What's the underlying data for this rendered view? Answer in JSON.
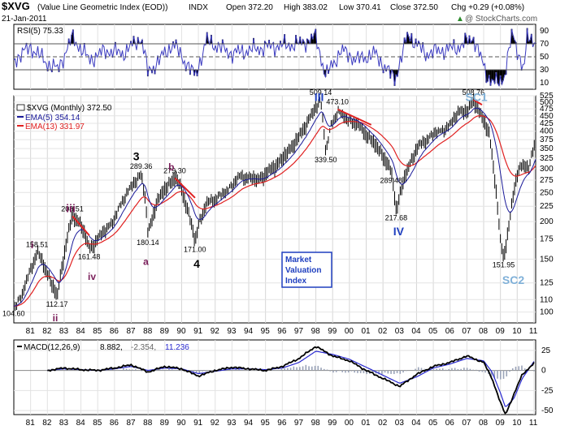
{
  "header": {
    "symbol": "$XVG",
    "name": "(Value Line Geometric Index (EOD))",
    "exchange": "INDX",
    "date": "21-Jan-2011",
    "open": "Open 372.20",
    "high": "High 383.02",
    "low": "Low 370.41",
    "close": "Close 372.50",
    "chg": "Chg +0.29 (+0.08%)",
    "chg_arrow": "▲",
    "watermark": "@ StockCharts.com"
  },
  "colors": {
    "price": "#000000",
    "ema5": "#1a1a99",
    "ema13": "#e02020",
    "rsi": "#3a3ac0",
    "macd": "#000000",
    "signal": "#2a2ad0",
    "histogram": "#9aa3b8",
    "trend": "#e02020",
    "wave_red": "#7a1f5a",
    "wave_blue": "#1f3fbf",
    "wave_light": "#7fb0d8"
  },
  "chart_data": [
    {
      "type": "line",
      "panel": "rsi",
      "legend": "RSI(5) 75.33",
      "ylim": [
        0,
        100
      ],
      "yticks": [
        10,
        30,
        50,
        70,
        90
      ],
      "levels": [
        30,
        50,
        70
      ],
      "x": [
        1980.0,
        1981.0,
        1982.0,
        1982.6,
        1983.5,
        1984.5,
        1985.5,
        1986.5,
        1987.6,
        1988.0,
        1989.5,
        1990.8,
        1991.5,
        1993.0,
        1995.0,
        1997.0,
        1998.0,
        1998.6,
        1999.5,
        2000.5,
        2001.5,
        2002.7,
        2003.5,
        2004.5,
        2005.5,
        2006.5,
        2007.4,
        2008.2,
        2008.8,
        2009.2,
        2009.7,
        2010.4,
        2010.6,
        2011.0
      ],
      "y": [
        45,
        65,
        40,
        30,
        80,
        45,
        60,
        55,
        80,
        25,
        70,
        20,
        75,
        55,
        65,
        70,
        80,
        20,
        60,
        45,
        55,
        15,
        85,
        55,
        60,
        65,
        80,
        20,
        8,
        18,
        85,
        30,
        80,
        75
      ]
    },
    {
      "type": "line",
      "panel": "price",
      "legend": [
        "$XVG (Monthly) 372.50",
        "EMA(5) 354.14",
        "EMA(13) 331.97"
      ],
      "xlabel": "",
      "ylabel": "",
      "xlim": [
        1980.0,
        2011.1
      ],
      "ylim": [
        92,
        525
      ],
      "scale": "log",
      "xticks": [
        "81",
        "82",
        "83",
        "84",
        "85",
        "86",
        "87",
        "88",
        "89",
        "90",
        "91",
        "92",
        "93",
        "94",
        "95",
        "96",
        "97",
        "98",
        "99",
        "00",
        "01",
        "02",
        "03",
        "04",
        "05",
        "06",
        "07",
        "08",
        "09",
        "10",
        "11"
      ],
      "yticks": [
        100,
        110,
        125,
        150,
        175,
        200,
        225,
        250,
        275,
        300,
        325,
        350,
        375,
        400,
        425,
        450,
        475,
        500,
        525
      ],
      "x": [
        1980.0,
        1980.5,
        1981.4,
        1982.4,
        1982.6,
        1983.5,
        1984.0,
        1984.5,
        1985.0,
        1986.0,
        1986.5,
        1987.6,
        1987.8,
        1988.0,
        1988.5,
        1989.0,
        1989.6,
        1990.0,
        1990.8,
        1991.0,
        1991.5,
        1992.5,
        1993.5,
        1994.5,
        1995.0,
        1996.0,
        1997.0,
        1997.6,
        1998.3,
        1998.6,
        1998.9,
        1999.3,
        1999.8,
        2000.3,
        2001.0,
        2001.5,
        2002.0,
        2002.5,
        2002.8,
        2003.3,
        2004.0,
        2005.0,
        2006.0,
        2006.5,
        2007.0,
        2007.4,
        2007.8,
        2008.3,
        2008.7,
        2009.0,
        2009.2,
        2009.5,
        2009.8,
        2010.0,
        2010.3,
        2010.7,
        2011.05
      ],
      "y": [
        104.6,
        115,
        158.5,
        118,
        112.2,
        208.5,
        195,
        161.5,
        175,
        205,
        240,
        289.4,
        245,
        180.1,
        230,
        255,
        279.3,
        255,
        171.0,
        195,
        230,
        250,
        285,
        275,
        285,
        320,
        380,
        440,
        509.1,
        339.5,
        420,
        473.1,
        440,
        430,
        390,
        360,
        330,
        289.5,
        217.7,
        280,
        350,
        395,
        420,
        470,
        460,
        508.8,
        450,
        400,
        260,
        170,
        151.95,
        190,
        250,
        290,
        310,
        300,
        372.5
      ],
      "annotations": [
        {
          "text": "104.60",
          "x": 1980.0,
          "y": 104.6
        },
        {
          "text": "158.51",
          "x": 1981.4,
          "y": 158.51
        },
        {
          "text": "112.17",
          "x": 1982.6,
          "y": 112.17
        },
        {
          "text": "208.51",
          "x": 1983.5,
          "y": 208.51
        },
        {
          "text": "161.48",
          "x": 1984.5,
          "y": 161.48
        },
        {
          "text": "289.36",
          "x": 1987.6,
          "y": 289.36
        },
        {
          "text": "180.14",
          "x": 1988.0,
          "y": 180.14
        },
        {
          "text": "279.30",
          "x": 1989.6,
          "y": 279.3
        },
        {
          "text": "171.00",
          "x": 1990.8,
          "y": 171.0
        },
        {
          "text": "509.14",
          "x": 1998.3,
          "y": 509.14
        },
        {
          "text": "339.50",
          "x": 1998.6,
          "y": 339.5
        },
        {
          "text": "473.10",
          "x": 1999.3,
          "y": 473.1
        },
        {
          "text": "289.48",
          "x": 2002.5,
          "y": 289.48
        },
        {
          "text": "217.68",
          "x": 2002.8,
          "y": 217.68
        },
        {
          "text": "508.76",
          "x": 2007.4,
          "y": 508.76
        },
        {
          "text": "151.95",
          "x": 2009.2,
          "y": 151.95
        }
      ],
      "waves": [
        {
          "text": "i",
          "color": "wave_red",
          "x": 1981.3,
          "y": 168
        },
        {
          "text": "ii",
          "color": "wave_red",
          "x": 1982.6,
          "y": 96
        },
        {
          "text": "iii",
          "color": "wave_red",
          "x": 1983.4,
          "y": 222
        },
        {
          "text": "iv",
          "color": "wave_red",
          "x": 1984.7,
          "y": 132
        },
        {
          "text": "3",
          "color": "black",
          "x": 1987.4,
          "y": 330
        },
        {
          "text": "a",
          "color": "wave_red",
          "x": 1988.0,
          "y": 148
        },
        {
          "text": "b",
          "color": "wave_red",
          "x": 1989.5,
          "y": 306
        },
        {
          "text": "4",
          "color": "black",
          "x": 1991.0,
          "y": 145
        },
        {
          "text": "III",
          "color": "wave_blue",
          "x": 1998.2,
          "y": 555
        },
        {
          "text": "IV",
          "color": "wave_blue",
          "x": 2002.9,
          "y": 186
        },
        {
          "text": "SC1",
          "color": "wave_light",
          "x": 2007.2,
          "y": 550
        },
        {
          "text": "SC2",
          "color": "wave_light",
          "x": 2009.4,
          "y": 128
        }
      ],
      "trendlines": [
        {
          "x": [
            1983.5,
            1984.5
          ],
          "y": [
            208.5,
            180
          ]
        },
        {
          "x": [
            1989.6,
            1990.8
          ],
          "y": [
            279.3,
            240
          ]
        },
        {
          "x": [
            1999.3,
            2001.3
          ],
          "y": [
            473.1,
            420
          ]
        },
        {
          "x": [
            2007.4,
            2007.9
          ],
          "y": [
            508.8,
            490
          ]
        }
      ],
      "box_text": [
        "Market",
        "Valuation",
        "Index"
      ]
    },
    {
      "type": "area",
      "panel": "macd",
      "legend": [
        "MACD(12,26,9)",
        "8.882,",
        "-2.354,",
        "11.236"
      ],
      "ylim": [
        -55,
        38
      ],
      "yticks": [
        25,
        0,
        -25,
        -50
      ],
      "x": [
        1982.0,
        1983.0,
        1984.0,
        1985.0,
        1986.0,
        1987.0,
        1988.0,
        1989.0,
        1990.0,
        1991.0,
        1992.0,
        1993.0,
        1994.0,
        1995.0,
        1996.0,
        1997.0,
        1998.0,
        1999.0,
        2000.0,
        2001.0,
        2002.0,
        2003.0,
        2004.0,
        2005.0,
        2006.0,
        2007.0,
        2008.0,
        2008.5,
        2009.0,
        2009.3,
        2009.8,
        2010.3,
        2011.0
      ],
      "macd": [
        0,
        3,
        1,
        0,
        3,
        7,
        -2,
        5,
        2,
        -7,
        0,
        4,
        2,
        0,
        5,
        15,
        30,
        18,
        12,
        0,
        -10,
        -20,
        -5,
        5,
        10,
        18,
        10,
        -10,
        -40,
        -55,
        -30,
        -5,
        8.9
      ],
      "signal": [
        0,
        2,
        1,
        0,
        2,
        5,
        0,
        3,
        2,
        -4,
        -1,
        2,
        2,
        1,
        3,
        10,
        24,
        20,
        14,
        4,
        -6,
        -16,
        -8,
        3,
        8,
        15,
        12,
        -2,
        -28,
        -46,
        -35,
        -10,
        11.2
      ],
      "histogram": [
        0,
        1,
        0,
        0,
        1,
        2,
        -2,
        2,
        0,
        -3,
        1,
        2,
        0,
        -1,
        2,
        5,
        6,
        -2,
        -2,
        -4,
        -4,
        -4,
        3,
        2,
        2,
        3,
        -2,
        -8,
        -12,
        -9,
        5,
        5,
        -2.4
      ]
    }
  ]
}
